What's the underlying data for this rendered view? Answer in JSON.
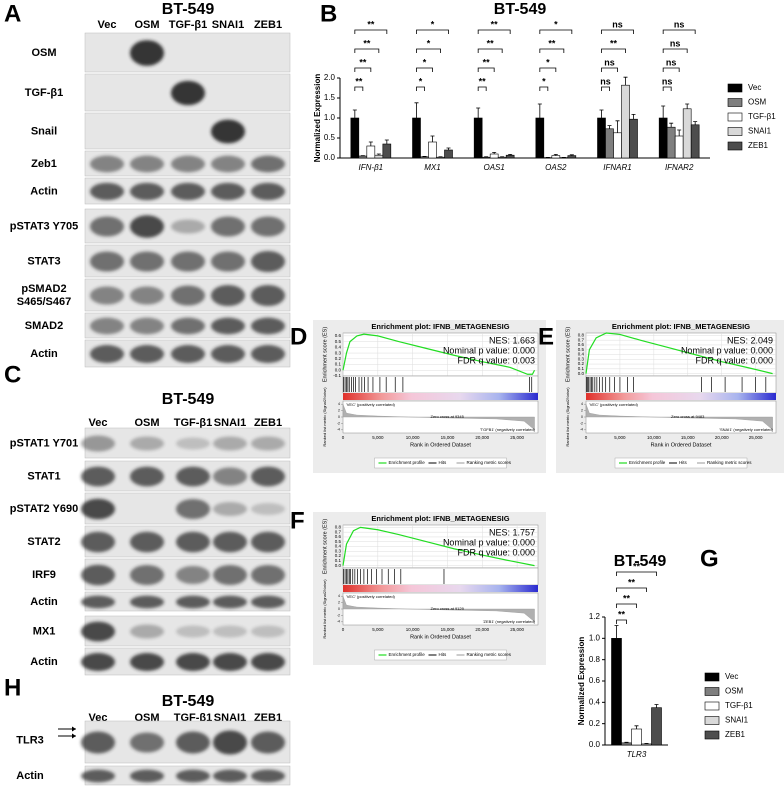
{
  "blots": [
    {
      "letter": "A",
      "title": "BT-549",
      "lanes": [
        "Vec",
        "OSM",
        "TGF-β1",
        "SNAI1",
        "ZEB1"
      ],
      "rows": [
        "OSM",
        "TGF-β1",
        "Snail",
        "Zeb1",
        "Actin",
        "pSTAT3 Y705",
        "STAT3",
        [
          "pSMAD2",
          "S465/S467"
        ],
        "SMAD2",
        "Actin"
      ]
    },
    {
      "letter": "C",
      "title": "BT-549",
      "lanes": [
        "Vec",
        "OSM",
        "TGF-β1",
        "SNAI1",
        "ZEB1"
      ],
      "rows": [
        "pSTAT1 Y701",
        "STAT1",
        "pSTAT2 Y690",
        "STAT2",
        "IRF9",
        "Actin",
        "MX1",
        "Actin"
      ]
    },
    {
      "letter": "H",
      "title": "BT-549",
      "lanes": [
        "Vec",
        "OSM",
        "TGF-β1",
        "SNAI1",
        "ZEB1"
      ],
      "rows": [
        "TLR3",
        "Actin"
      ]
    }
  ],
  "chart_data": [
    {
      "type": "bar",
      "letter": "B",
      "title": "BT-549",
      "ylabel": "Normalized Expression",
      "categories": [
        "IFN-β1",
        "MX1",
        "OAS1",
        "OAS2",
        "IFNAR1",
        "IFNAR2"
      ],
      "ylim": [
        0,
        2
      ],
      "yticks": [
        {
          "value": 0,
          "label": "0.0"
        },
        0.5,
        {
          "value": 1,
          "label": "1.0"
        },
        1.5,
        {
          "value": 2,
          "label": "2.0"
        }
      ],
      "series": [
        {
          "name": "Vec",
          "color": "#000000",
          "values": [
            1,
            1,
            1,
            1,
            1,
            1
          ],
          "errors": [
            0.2,
            0.38,
            0.25,
            0.35,
            0.2,
            0.3
          ]
        },
        {
          "name": "OSM",
          "color": "#7f7f7f",
          "values": [
            0.05,
            0.03,
            0.02,
            0.01,
            0.73,
            0.77
          ],
          "errors": [
            0.01,
            0.01,
            0.01,
            0.005,
            0.08,
            0.1
          ]
        },
        {
          "name": "TGF-β1",
          "color": "#ffffff",
          "values": [
            0.3,
            0.4,
            0.1,
            0.06,
            0.63,
            0.55
          ],
          "errors": [
            0.1,
            0.15,
            0.04,
            0.03,
            0.3,
            0.15
          ]
        },
        {
          "name": "SNAI1",
          "color": "#d9d9d9",
          "values": [
            0.07,
            0.02,
            0.02,
            0.01,
            1.82,
            1.23
          ],
          "errors": [
            0.03,
            0.01,
            0.01,
            0.005,
            0.2,
            0.12
          ]
        },
        {
          "name": "ZEB1",
          "color": "#4d4d4d",
          "values": [
            0.35,
            0.2,
            0.07,
            0.06,
            0.97,
            0.83
          ],
          "errors": [
            0.1,
            0.05,
            0.02,
            0.02,
            0.12,
            0.08
          ]
        }
      ],
      "significance": [
        [
          "**",
          "**",
          "**",
          "**"
        ],
        [
          "*",
          "*",
          "*",
          "*"
        ],
        [
          "**",
          "**",
          "**",
          "**"
        ],
        [
          "*",
          "*",
          "**",
          "*"
        ],
        [
          "ns",
          "ns",
          "**",
          "ns"
        ],
        [
          "ns",
          "ns",
          "ns",
          "ns"
        ]
      ]
    },
    {
      "type": "gsea",
      "letter": "D",
      "title": "Enrichment plot: IFNB_METAGENESIG",
      "stats": [
        "NES: 1.663",
        "Nominal p value: 0.000",
        "FDR q value: 0.003"
      ],
      "ylabel": "Enrichment score (ES)",
      "metric_label": "Ranked list metric (Signal2Noise)",
      "xlabel": "Rank in Ordered Dataset",
      "xlim": [
        0,
        28000
      ],
      "xticks": [
        0,
        {
          "value": 5000,
          "label": "5,000"
        },
        {
          "value": 10000,
          "label": "10,000"
        },
        {
          "value": 15000,
          "label": "15,000"
        },
        {
          "value": 20000,
          "label": "20,000"
        },
        {
          "value": 25000,
          "label": "25,000"
        }
      ],
      "ylim": [
        -0.1,
        0.65
      ],
      "yticks": [
        -0.1,
        {
          "value": 0,
          "label": "0.0"
        },
        0.1,
        0.2,
        0.3,
        0.4,
        0.5,
        0.6
      ],
      "es_x": [
        0,
        500,
        1000,
        2000,
        3000,
        5000,
        8000,
        12000,
        16000,
        20000,
        24000,
        26500,
        27200,
        27500
      ],
      "es": [
        0,
        0.3,
        0.5,
        0.6,
        0.63,
        0.6,
        0.5,
        0.38,
        0.26,
        0.15,
        0.05,
        -0.07,
        -0.07,
        0
      ],
      "hits": [
        100,
        300,
        500,
        700,
        900,
        1200,
        1500,
        1800,
        2300,
        2700,
        3100,
        3600,
        4300,
        5300,
        6200,
        7500,
        8600,
        26800,
        27100
      ],
      "metric_x": [
        0,
        500,
        2000,
        5000,
        9345,
        15000,
        22000,
        26000,
        27500
      ],
      "metric": [
        4,
        1.2,
        0.6,
        0.3,
        0,
        -0.3,
        -0.6,
        -1.3,
        -4
      ],
      "metric_ylim": [
        -5,
        5
      ],
      "metric_yticks": [
        4,
        2,
        0,
        -2,
        -4
      ],
      "pos_label": "'VEC' (positively correlated)",
      "zero_cross": "Zero cross at 9345",
      "neg_label": "'TGFB1' (negatively correlated)",
      "legend": [
        "Enrichment profile",
        "Hits",
        "Ranking metric scores"
      ]
    },
    {
      "type": "gsea",
      "letter": "E",
      "title": "Enrichment plot: IFNB_METAGENESIG",
      "stats": [
        "NES: 2.049",
        "Nominal p value: 0.000",
        "FDR q value: 0.000"
      ],
      "ylabel": "Enrichment score (ES)",
      "metric_label": "Ranked list metric (Signal2Noise)",
      "xlabel": "Rank in Ordered Dataset",
      "xlim": [
        0,
        28000
      ],
      "xticks": [
        0,
        {
          "value": 5000,
          "label": "5,000"
        },
        {
          "value": 10000,
          "label": "10,000"
        },
        {
          "value": 15000,
          "label": "15,000"
        },
        {
          "value": 20000,
          "label": "20,000"
        },
        {
          "value": 25000,
          "label": "25,000"
        }
      ],
      "ylim": [
        -0.05,
        0.85
      ],
      "yticks": [
        {
          "value": 0,
          "label": "0.0"
        },
        0.1,
        0.2,
        0.3,
        0.4,
        0.5,
        0.6,
        0.7,
        0.8
      ],
      "es_x": [
        0,
        500,
        1500,
        3000,
        5000,
        8000,
        12000,
        16000,
        20000,
        24000,
        27500
      ],
      "es": [
        0,
        0.5,
        0.75,
        0.85,
        0.82,
        0.7,
        0.55,
        0.4,
        0.25,
        0.12,
        0
      ],
      "hits": [
        100,
        250,
        400,
        600,
        800,
        1000,
        1300,
        1600,
        2000,
        2400,
        2900,
        3500,
        4200,
        5000,
        6100,
        7000,
        17000,
        18500,
        20500,
        23000,
        25000,
        26500
      ],
      "metric_x": [
        0,
        500,
        2000,
        5000,
        9483,
        15000,
        22000,
        26000,
        27500
      ],
      "metric": [
        4,
        1.2,
        0.6,
        0.3,
        0,
        -0.3,
        -0.6,
        -1.3,
        -4
      ],
      "metric_ylim": [
        -5,
        5
      ],
      "metric_yticks": [
        4,
        2,
        0,
        -2,
        -4
      ],
      "pos_label": "'VEC' (positively correlated)",
      "zero_cross": "Zero cross at 9483",
      "neg_label": "'SNAI1' (negatively correlated)",
      "legend": [
        "Enrichment profile",
        "Hits",
        "Ranking metric scores"
      ]
    },
    {
      "type": "gsea",
      "letter": "F",
      "title": "Enrichment plot: IFNB_METAGENESIG",
      "stats": [
        "NES: 1.757",
        "Nominal p value: 0.000",
        "FDR q value: 0.000"
      ],
      "ylabel": "Enrichment score (ES)",
      "metric_label": "Ranked list metric (Signal2Noise)",
      "xlabel": "Rank in Ordered Dataset",
      "xlim": [
        0,
        28000
      ],
      "xticks": [
        0,
        {
          "value": 5000,
          "label": "5,000"
        },
        {
          "value": 10000,
          "label": "10,000"
        },
        {
          "value": 15000,
          "label": "15,000"
        },
        {
          "value": 20000,
          "label": "20,000"
        },
        {
          "value": 25000,
          "label": "25,000"
        }
      ],
      "ylim": [
        -0.05,
        0.85
      ],
      "yticks": [
        {
          "value": 0,
          "label": "0.0"
        },
        0.1,
        0.2,
        0.3,
        0.4,
        0.5,
        0.6,
        0.7,
        0.8
      ],
      "es_x": [
        0,
        500,
        1500,
        2500,
        5000,
        8000,
        12000,
        16000,
        20000,
        24000,
        27500
      ],
      "es": [
        0,
        0.45,
        0.73,
        0.8,
        0.75,
        0.65,
        0.5,
        0.35,
        0.22,
        0.1,
        0
      ],
      "hits": [
        100,
        300,
        500,
        700,
        900,
        1100,
        1400,
        1700,
        2100,
        2500,
        3000,
        3500,
        4100,
        4800,
        5600,
        6500,
        7400,
        8300,
        14500
      ],
      "metric_x": [
        0,
        500,
        2000,
        5000,
        9129,
        15000,
        22000,
        26000,
        27500
      ],
      "metric": [
        4,
        1.2,
        0.6,
        0.3,
        0,
        -0.3,
        -0.6,
        -1.3,
        -4
      ],
      "metric_ylim": [
        -5,
        5
      ],
      "metric_yticks": [
        4,
        2,
        0,
        -2,
        -4
      ],
      "pos_label": "'VEC' (positively correlated)",
      "zero_cross": "Zero cross at 9129",
      "neg_label": "'ZEB1' (negatively correlated)",
      "legend": [
        "Enrichment profile",
        "Hits",
        "Ranking metric scores"
      ]
    },
    {
      "type": "bar",
      "letter": "G",
      "title": "BT-549",
      "ylabel": "Normalized Expression",
      "categories": [
        "TLR3"
      ],
      "ylim": [
        0,
        1.2
      ],
      "yticks": [
        {
          "value": 0,
          "label": "0.0"
        },
        0.2,
        0.4,
        0.6,
        0.8,
        {
          "value": 1,
          "label": "1.0"
        },
        1.2
      ],
      "series": [
        {
          "name": "Vec",
          "color": "#000000",
          "values": [
            1
          ],
          "errors": [
            0.12
          ]
        },
        {
          "name": "OSM",
          "color": "#7f7f7f",
          "values": [
            0.02
          ],
          "errors": [
            0.005
          ]
        },
        {
          "name": "TGF-β1",
          "color": "#ffffff",
          "values": [
            0.15
          ],
          "errors": [
            0.03
          ]
        },
        {
          "name": "SNAI1",
          "color": "#d9d9d9",
          "values": [
            0.01
          ],
          "errors": [
            0.005
          ]
        },
        {
          "name": "ZEB1",
          "color": "#4d4d4d",
          "values": [
            0.35
          ],
          "errors": [
            0.03
          ]
        }
      ],
      "significance": [
        [
          "**",
          "**",
          "**",
          "**"
        ]
      ]
    }
  ]
}
